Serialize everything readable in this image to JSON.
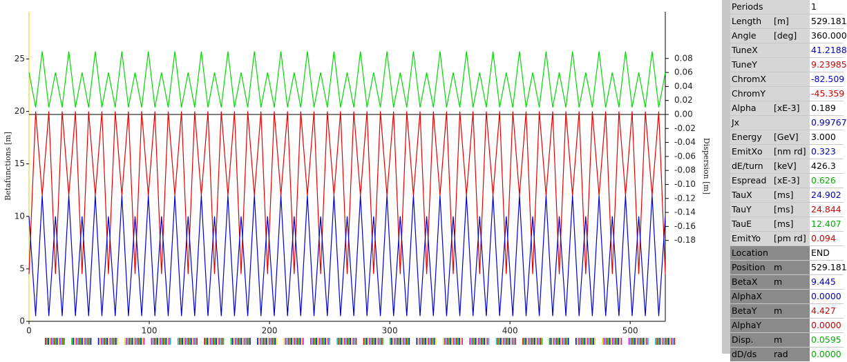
{
  "chart_data": {
    "type": "line",
    "ylabel": "Betafunctions [m]",
    "y2label": "Dispersion [m]",
    "xlim": [
      0,
      529.181
    ],
    "xticks": [
      0,
      100,
      200,
      300,
      400,
      500
    ],
    "ylim": [
      0,
      29.5
    ],
    "yticks": [
      0,
      5,
      10,
      15,
      20,
      25
    ],
    "y2lim": [
      -0.2956,
      0.1468
    ],
    "y2ticks": [
      0.08,
      0.06,
      0.04,
      0.02,
      {
        "value": 0,
        "label": "0.00"
      },
      -0.02,
      -0.04,
      -0.06,
      -0.08,
      {
        "value": -0.1,
        "label": "-0.10"
      },
      -0.12,
      -0.14,
      -0.16,
      -0.18
    ],
    "x": [
      0,
      5.5,
      11.0,
      16.5,
      22.0,
      27.6,
      33.1,
      38.6,
      44.1,
      49.6,
      55.1,
      60.6,
      66.1,
      71.7,
      77.2,
      82.7,
      88.2,
      93.7,
      99.2,
      104.7,
      110.2,
      115.8,
      121.3,
      126.8,
      132.3,
      137.8,
      143.3,
      148.8,
      154.3,
      159.9,
      165.4,
      170.9,
      176.4,
      181.9,
      187.4,
      192.9,
      198.4,
      204.0,
      209.5,
      215.0,
      220.5,
      226.0,
      231.5,
      237.0,
      242.5,
      248.1,
      253.6,
      259.1,
      264.6,
      270.1,
      275.6,
      281.1,
      286.6,
      292.2,
      297.7,
      303.2,
      308.7,
      314.2,
      319.7,
      325.2,
      330.7,
      336.3,
      341.8,
      347.3,
      352.8,
      358.3,
      363.8,
      369.3,
      374.8,
      380.3,
      385.9,
      391.4,
      396.9,
      402.4,
      407.9,
      413.4,
      418.9,
      424.4,
      430.0,
      435.5,
      441.0,
      446.5,
      452.0,
      457.5,
      463.0,
      468.5,
      474.1,
      479.6,
      485.1,
      490.6,
      496.1,
      501.6,
      507.1,
      512.6,
      518.2,
      523.7,
      529.2
    ],
    "series": [
      {
        "color": "#e00000",
        "values": [
          4.5,
          20,
          12,
          20,
          4.5,
          20,
          12,
          20,
          4.5,
          20,
          12,
          20,
          4.5,
          20,
          12,
          20,
          4.5,
          20,
          12,
          20,
          4.5,
          20,
          12,
          20,
          4.5,
          20,
          12,
          20,
          4.5,
          20,
          12,
          20,
          4.5,
          20,
          12,
          20,
          4.5,
          20,
          12,
          20,
          4.5,
          20,
          12,
          20,
          4.5,
          20,
          12,
          20,
          4.5,
          20,
          12,
          20,
          4.5,
          20,
          12,
          20,
          4.5,
          20,
          12,
          20,
          4.5,
          20,
          12,
          20,
          4.5,
          20,
          12,
          20,
          4.5,
          20,
          12,
          20,
          4.5,
          20,
          12,
          20,
          4.5,
          20,
          12,
          20,
          4.5,
          20,
          12,
          20,
          4.5,
          20,
          12,
          20,
          4.5,
          20,
          12,
          20,
          4.5,
          20,
          12,
          20,
          4.5
        ]
      },
      {
        "color": "#0000c8",
        "values": [
          10,
          0.5,
          12,
          0.5,
          10,
          0.5,
          12,
          0.5,
          10,
          0.5,
          12,
          0.5,
          10,
          0.5,
          12,
          0.5,
          10,
          0.5,
          12,
          0.5,
          10,
          0.5,
          12,
          0.5,
          10,
          0.5,
          12,
          0.5,
          10,
          0.5,
          12,
          0.5,
          10,
          0.5,
          12,
          0.5,
          10,
          0.5,
          12,
          0.5,
          10,
          0.5,
          12,
          0.5,
          10,
          0.5,
          12,
          0.5,
          10,
          0.5,
          12,
          0.5,
          10,
          0.5,
          12,
          0.5,
          10,
          0.5,
          12,
          0.5,
          10,
          0.5,
          12,
          0.5,
          10,
          0.5,
          12,
          0.5,
          10,
          0.5,
          12,
          0.5,
          10,
          0.5,
          12,
          0.5,
          10,
          0.5,
          12,
          0.5,
          10,
          0.5,
          12,
          0.5,
          10,
          0.5,
          12,
          0.5,
          10,
          0.5,
          12,
          0.5,
          10,
          0.5,
          12,
          0.5,
          10
        ]
      },
      {
        "color": "#00d800",
        "axis": "y2",
        "values": [
          0.06,
          0.01,
          0.09,
          0.01,
          0.06,
          0.01,
          0.09,
          0.01,
          0.06,
          0.01,
          0.09,
          0.01,
          0.06,
          0.01,
          0.09,
          0.01,
          0.06,
          0.01,
          0.09,
          0.01,
          0.06,
          0.01,
          0.09,
          0.01,
          0.06,
          0.01,
          0.09,
          0.01,
          0.06,
          0.01,
          0.09,
          0.01,
          0.06,
          0.01,
          0.09,
          0.01,
          0.06,
          0.01,
          0.09,
          0.01,
          0.06,
          0.01,
          0.09,
          0.01,
          0.06,
          0.01,
          0.09,
          0.01,
          0.06,
          0.01,
          0.09,
          0.01,
          0.06,
          0.01,
          0.09,
          0.01,
          0.06,
          0.01,
          0.09,
          0.01,
          0.06,
          0.01,
          0.09,
          0.01,
          0.06,
          0.01,
          0.09,
          0.01,
          0.06,
          0.01,
          0.09,
          0.01,
          0.06,
          0.01,
          0.09,
          0.01,
          0.06,
          0.01,
          0.09,
          0.01,
          0.06,
          0.01,
          0.09,
          0.01,
          0.06,
          0.01,
          0.09,
          0.01,
          0.06,
          0.01,
          0.09,
          0.01,
          0.06,
          0.01,
          0.09,
          0.01,
          0.06
        ]
      }
    ]
  },
  "table": {
    "rows": [
      {
        "label": "Periods",
        "value": "1",
        "color": "#000000",
        "section": "global"
      },
      {
        "label": "Length",
        "unit": "[m]",
        "value": "529.181",
        "color": "#000000",
        "section": "global"
      },
      {
        "label": "Angle",
        "unit": "[deg]",
        "value": "360.000",
        "color": "#000000",
        "section": "global"
      },
      {
        "label": "TuneX",
        "value": "41.2188",
        "color": "#0000c0",
        "section": "global"
      },
      {
        "label": "TuneY",
        "value": "9.23985",
        "color": "#d00000",
        "section": "global"
      },
      {
        "label": "ChromX",
        "value": "-82.509",
        "color": "#0000c0",
        "section": "global"
      },
      {
        "label": "ChromY",
        "value": "-45.359",
        "color": "#d00000",
        "section": "global"
      },
      {
        "label": "Alpha",
        "unit": "[xE-3]",
        "value": "0.189",
        "color": "#000000",
        "section": "global"
      },
      {
        "label": "Jx",
        "value": "0.99767",
        "color": "#0000c0",
        "section": "global"
      },
      {
        "label": "Energy",
        "unit": "[GeV]",
        "value": "3.000",
        "color": "#000000",
        "section": "global"
      },
      {
        "label": "EmitXo",
        "unit": "[nm rd]",
        "value": "0.323",
        "color": "#0000c0",
        "section": "global"
      },
      {
        "label": "dE/turn",
        "unit": "[keV]",
        "value": "426.3",
        "color": "#000000",
        "section": "global"
      },
      {
        "label": "Espread",
        "unit": "[xE-3]",
        "value": "0.626",
        "color": "#00b000",
        "section": "global"
      },
      {
        "label": "TauX",
        "unit": "[ms]",
        "value": "24.902",
        "color": "#0000c0",
        "section": "global"
      },
      {
        "label": "TauY",
        "unit": "[ms]",
        "value": "24.844",
        "color": "#d00000",
        "section": "global"
      },
      {
        "label": "TauE",
        "unit": "[ms]",
        "value": "12.407",
        "color": "#00b000",
        "section": "global"
      },
      {
        "label": "EmitYo",
        "unit": "[pm rd]",
        "value": "0.094",
        "color": "#d00000",
        "section": "global"
      },
      {
        "label": "Location",
        "value": "END",
        "color": "#000000",
        "section": "local"
      },
      {
        "label": "Position",
        "unit": "m",
        "value": "529.181",
        "color": "#000000",
        "section": "local"
      },
      {
        "label": "BetaX",
        "unit": "m",
        "value": "9.445",
        "color": "#0000c0",
        "section": "local"
      },
      {
        "label": "AlphaX",
        "value": "0.0000",
        "color": "#0000c0",
        "section": "local"
      },
      {
        "label": "BetaY",
        "unit": "m",
        "value": "4.427",
        "color": "#d00000",
        "section": "local"
      },
      {
        "label": "AlphaY",
        "value": "0.0000",
        "color": "#d00000",
        "section": "local"
      },
      {
        "label": "Disp.",
        "unit": "m",
        "value": "0.0595",
        "color": "#00b000",
        "section": "local"
      },
      {
        "label": "dD/ds",
        "unit": "rad",
        "value": "0.0000",
        "color": "#00b000",
        "section": "local"
      }
    ]
  }
}
